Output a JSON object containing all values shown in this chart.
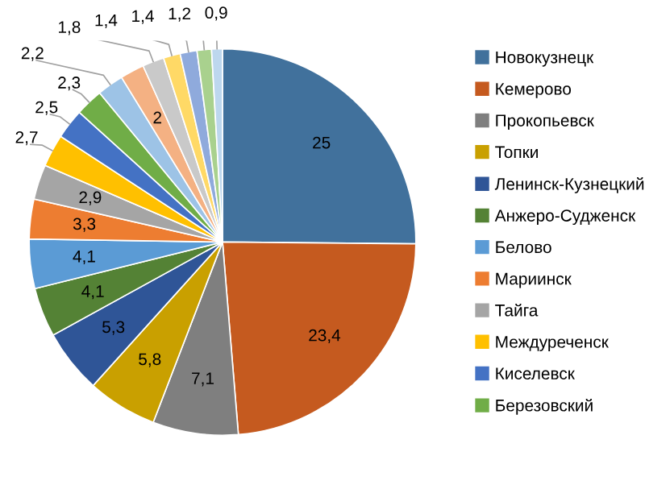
{
  "chart_data": {
    "type": "pie",
    "categories": [
      "Новокузнецк",
      "Кемерово",
      "Прокопьевск",
      "Топки",
      "Ленинск-Кузнецкий",
      "Анжеро-Судженск",
      "Белово",
      "Мариинск",
      "Тайга",
      "Междуреченск",
      "Киселевск",
      "Березовский",
      null,
      null,
      null,
      null,
      null,
      null,
      null
    ],
    "values": [
      25,
      23.4,
      7.1,
      5.8,
      5.3,
      4.1,
      4.1,
      3.3,
      2.9,
      2.7,
      2.5,
      2.3,
      2.2,
      2,
      1.8,
      1.4,
      1.4,
      1.2,
      0.9
    ],
    "value_labels": [
      "25",
      "23,4",
      "7,1",
      "5,8",
      "5,3",
      "4,1",
      "4,1",
      "3,3",
      "2,9",
      "2,7",
      "2,5",
      "2,3",
      "2,2",
      "2",
      "1,8",
      "1,4",
      "1,4",
      "1,2",
      "0,9"
    ],
    "colors": [
      "#41719c",
      "#c55a1f",
      "#7f7f7f",
      "#c9a000",
      "#2f5597",
      "#548235",
      "#5b9bd5",
      "#ed7d31",
      "#a5a5a5",
      "#ffc000",
      "#4472c4",
      "#70ad47",
      "#9dc3e6",
      "#f4b183",
      "#c9c9c9",
      "#ffd966",
      "#8faadc",
      "#a9d18e",
      "#bdd7ee"
    ],
    "legend": "right"
  }
}
